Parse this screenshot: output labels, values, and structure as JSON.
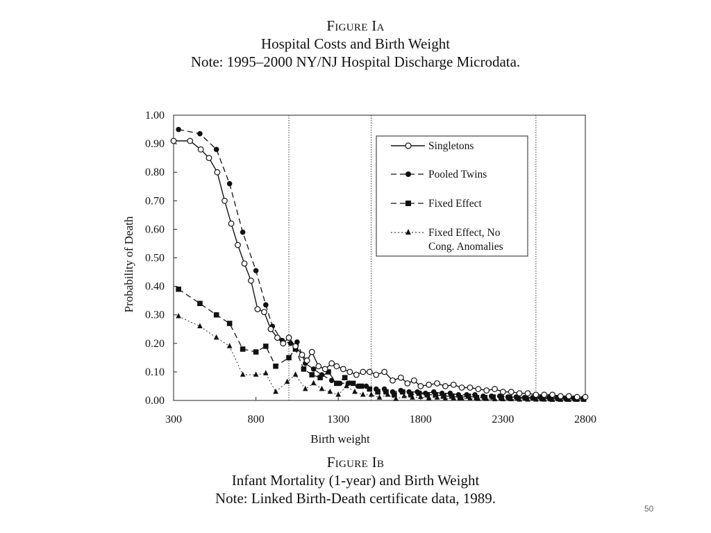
{
  "figure_a": {
    "label": "Figure Ia",
    "title": "Hospital Costs and Birth Weight",
    "note": "Note: 1995–2000 NY/NJ Hospital Discharge Microdata."
  },
  "figure_b": {
    "label": "Figure Ib",
    "title": "Infant Mortality (1-year) and Birth Weight",
    "note": "Note: Linked Birth-Death certificate data, 1989."
  },
  "page_number": "50",
  "chart_data": {
    "type": "line",
    "xlabel": "Birth weight",
    "ylabel": "Probability of Death",
    "xlim": [
      300,
      2800
    ],
    "ylim": [
      0,
      1
    ],
    "x_ticks": [
      "300",
      "800",
      "1300",
      "1800",
      "2300",
      "2800"
    ],
    "y_ticks": [
      "0.00",
      "0.10",
      "0.20",
      "0.30",
      "0.40",
      "0.50",
      "0.60",
      "0.70",
      "0.80",
      "0.90",
      "1.00"
    ],
    "reference_lines_x": [
      1000,
      1500,
      2500
    ],
    "grid": false,
    "legend_position": "top-right",
    "series": [
      {
        "name": "Singletons",
        "marker": "open-circle",
        "line": "solid",
        "points": [
          [
            300,
            0.91
          ],
          [
            400,
            0.91
          ],
          [
            465,
            0.88
          ],
          [
            515,
            0.85
          ],
          [
            565,
            0.8
          ],
          [
            610,
            0.7
          ],
          [
            650,
            0.62
          ],
          [
            690,
            0.545
          ],
          [
            730,
            0.48
          ],
          [
            770,
            0.42
          ],
          [
            810,
            0.32
          ],
          [
            850,
            0.31
          ],
          [
            890,
            0.25
          ],
          [
            930,
            0.22
          ],
          [
            965,
            0.2
          ],
          [
            1000,
            0.22
          ],
          [
            1040,
            0.19
          ],
          [
            1080,
            0.16
          ],
          [
            1110,
            0.14
          ],
          [
            1140,
            0.17
          ],
          [
            1180,
            0.12
          ],
          [
            1220,
            0.11
          ],
          [
            1260,
            0.13
          ],
          [
            1290,
            0.12
          ],
          [
            1330,
            0.11
          ],
          [
            1370,
            0.1
          ],
          [
            1410,
            0.09
          ],
          [
            1450,
            0.1
          ],
          [
            1490,
            0.1
          ],
          [
            1530,
            0.09
          ],
          [
            1580,
            0.1
          ],
          [
            1630,
            0.07
          ],
          [
            1680,
            0.08
          ],
          [
            1720,
            0.06
          ],
          [
            1760,
            0.07
          ],
          [
            1800,
            0.05
          ],
          [
            1850,
            0.055
          ],
          [
            1900,
            0.06
          ],
          [
            1950,
            0.05
          ],
          [
            2000,
            0.055
          ],
          [
            2050,
            0.045
          ],
          [
            2100,
            0.045
          ],
          [
            2150,
            0.04
          ],
          [
            2200,
            0.035
          ],
          [
            2250,
            0.04
          ],
          [
            2300,
            0.03
          ],
          [
            2350,
            0.03
          ],
          [
            2400,
            0.025
          ],
          [
            2450,
            0.025
          ],
          [
            2500,
            0.02
          ],
          [
            2550,
            0.02
          ],
          [
            2600,
            0.02
          ],
          [
            2650,
            0.015
          ],
          [
            2700,
            0.015
          ],
          [
            2750,
            0.012
          ],
          [
            2800,
            0.012
          ]
        ]
      },
      {
        "name": "Pooled Twins",
        "marker": "filled-circle",
        "line": "dashed",
        "points": [
          [
            330,
            0.95
          ],
          [
            460,
            0.935
          ],
          [
            560,
            0.88
          ],
          [
            640,
            0.76
          ],
          [
            720,
            0.59
          ],
          [
            800,
            0.455
          ],
          [
            860,
            0.335
          ],
          [
            900,
            0.26
          ],
          [
            960,
            0.21
          ],
          [
            1010,
            0.2
          ],
          [
            1050,
            0.205
          ],
          [
            1100,
            0.13
          ],
          [
            1150,
            0.11
          ],
          [
            1200,
            0.09
          ],
          [
            1260,
            0.07
          ],
          [
            1310,
            0.06
          ],
          [
            1360,
            0.06
          ],
          [
            1420,
            0.05
          ],
          [
            1470,
            0.05
          ],
          [
            1530,
            0.04
          ],
          [
            1580,
            0.04
          ],
          [
            1630,
            0.03
          ],
          [
            1680,
            0.035
          ],
          [
            1730,
            0.03
          ],
          [
            1780,
            0.03
          ],
          [
            1830,
            0.025
          ],
          [
            1880,
            0.03
          ],
          [
            1930,
            0.025
          ],
          [
            1980,
            0.025
          ],
          [
            2030,
            0.02
          ],
          [
            2080,
            0.02
          ],
          [
            2130,
            0.02
          ],
          [
            2180,
            0.015
          ],
          [
            2230,
            0.015
          ],
          [
            2280,
            0.015
          ],
          [
            2330,
            0.012
          ],
          [
            2380,
            0.012
          ],
          [
            2430,
            0.01
          ],
          [
            2480,
            0.01
          ],
          [
            2530,
            0.01
          ],
          [
            2580,
            0.01
          ],
          [
            2630,
            0.01
          ],
          [
            2680,
            0.008
          ],
          [
            2730,
            0.008
          ],
          [
            2790,
            0.008
          ]
        ]
      },
      {
        "name": "Fixed Effect",
        "marker": "filled-square",
        "line": "dashed",
        "points": [
          [
            330,
            0.39
          ],
          [
            460,
            0.34
          ],
          [
            560,
            0.3
          ],
          [
            640,
            0.27
          ],
          [
            720,
            0.18
          ],
          [
            800,
            0.17
          ],
          [
            860,
            0.19
          ],
          [
            920,
            0.12
          ],
          [
            1000,
            0.15
          ],
          [
            1040,
            0.18
          ],
          [
            1090,
            0.11
          ],
          [
            1140,
            0.09
          ],
          [
            1190,
            0.08
          ],
          [
            1240,
            0.1
          ],
          [
            1290,
            0.06
          ],
          [
            1340,
            0.08
          ],
          [
            1390,
            0.06
          ],
          [
            1440,
            0.05
          ],
          [
            1490,
            0.04
          ],
          [
            1540,
            0.03
          ],
          [
            1590,
            0.03
          ],
          [
            1640,
            0.02
          ],
          [
            1690,
            0.03
          ],
          [
            1740,
            0.02
          ],
          [
            1790,
            0.025
          ],
          [
            1840,
            0.02
          ],
          [
            1890,
            0.02
          ],
          [
            1940,
            0.015
          ],
          [
            1990,
            0.015
          ],
          [
            2040,
            0.01
          ],
          [
            2090,
            0.015
          ],
          [
            2140,
            0.01
          ],
          [
            2190,
            0.01
          ],
          [
            2240,
            0.012
          ],
          [
            2290,
            0.01
          ],
          [
            2340,
            0.01
          ],
          [
            2390,
            0.008
          ],
          [
            2440,
            0.008
          ],
          [
            2490,
            0.008
          ],
          [
            2540,
            0.006
          ],
          [
            2590,
            0.006
          ],
          [
            2640,
            0.006
          ],
          [
            2690,
            0.005
          ],
          [
            2740,
            0.005
          ],
          [
            2790,
            0.005
          ]
        ]
      },
      {
        "name": "Fixed Effect, No Cong. Anomalies",
        "marker": "filled-triangle",
        "line": "dotted",
        "points": [
          [
            330,
            0.295
          ],
          [
            460,
            0.26
          ],
          [
            560,
            0.22
          ],
          [
            640,
            0.19
          ],
          [
            720,
            0.09
          ],
          [
            800,
            0.09
          ],
          [
            860,
            0.095
          ],
          [
            920,
            0.03
          ],
          [
            990,
            0.065
          ],
          [
            1040,
            0.09
          ],
          [
            1100,
            0.04
          ],
          [
            1150,
            0.06
          ],
          [
            1200,
            0.04
          ],
          [
            1250,
            0.03
          ],
          [
            1300,
            0.02
          ],
          [
            1350,
            0.05
          ],
          [
            1400,
            0.03
          ],
          [
            1450,
            0.02
          ],
          [
            1500,
            0.02
          ],
          [
            1550,
            0.01
          ],
          [
            1600,
            0.02
          ],
          [
            1650,
            0.005
          ],
          [
            1700,
            0.015
          ],
          [
            1750,
            0.01
          ],
          [
            1800,
            0.012
          ],
          [
            1850,
            0.008
          ],
          [
            1900,
            0.01
          ],
          [
            1950,
            0.006
          ],
          [
            2000,
            0.008
          ],
          [
            2050,
            0.006
          ],
          [
            2100,
            0.006
          ],
          [
            2150,
            0.005
          ],
          [
            2200,
            0.005
          ],
          [
            2250,
            0.004
          ],
          [
            2300,
            0.004
          ],
          [
            2350,
            0.004
          ],
          [
            2400,
            0.003
          ],
          [
            2450,
            0.003
          ],
          [
            2500,
            0.003
          ],
          [
            2550,
            0.003
          ],
          [
            2600,
            0.002
          ],
          [
            2650,
            0.002
          ],
          [
            2700,
            0.002
          ],
          [
            2750,
            0.002
          ],
          [
            2790,
            0.002
          ]
        ]
      }
    ]
  }
}
